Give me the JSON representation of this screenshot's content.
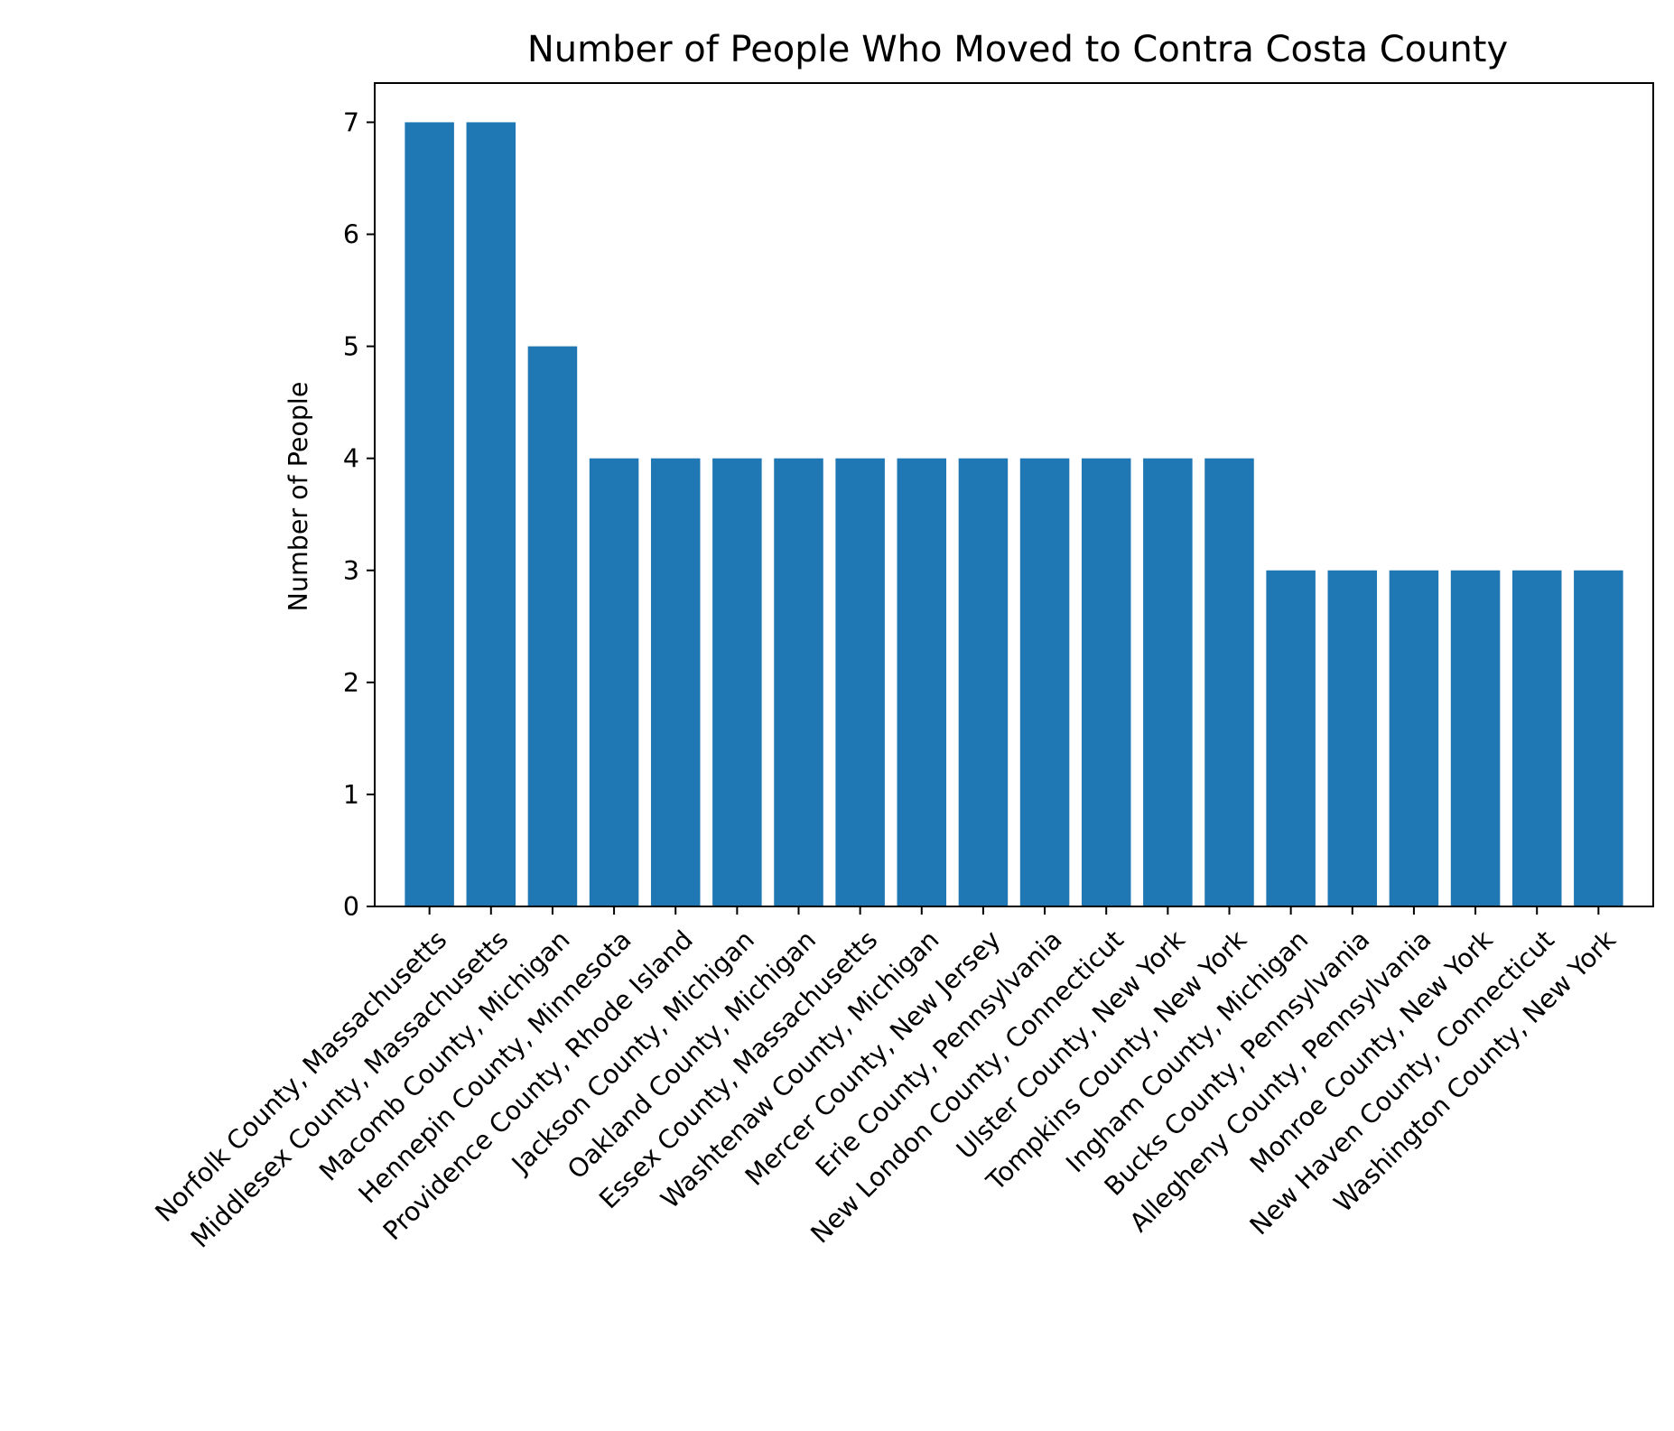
{
  "chart_data": {
    "type": "bar",
    "title": "Number of People Who Moved to Contra Costa County",
    "xlabel": "",
    "ylabel": "Number of People",
    "ylim": [
      0,
      7.35
    ],
    "yticks": [
      0,
      1,
      2,
      3,
      4,
      5,
      6,
      7
    ],
    "grid": false,
    "bar_color": "#1f77b4",
    "categories": [
      "Norfolk County, Massachusetts",
      "Middlesex County, Massachusetts",
      "Macomb County, Michigan",
      "Hennepin County, Minnesota",
      "Providence County, Rhode Island",
      "Jackson County, Michigan",
      "Oakland County, Michigan",
      "Essex County, Massachusetts",
      "Washtenaw County, Michigan",
      "Mercer County, New Jersey",
      "Erie County, Pennsylvania",
      "New London County, Connecticut",
      "Ulster County, New York",
      "Tompkins County, New York",
      "Ingham County, Michigan",
      "Bucks County, Pennsylvania",
      "Allegheny County, Pennsylvania",
      "Monroe County, New York",
      "New Haven County, Connecticut",
      "Washington County, New York"
    ],
    "values": [
      7,
      7,
      5,
      4,
      4,
      4,
      4,
      4,
      4,
      4,
      4,
      4,
      4,
      4,
      3,
      3,
      3,
      3,
      3,
      3
    ]
  }
}
